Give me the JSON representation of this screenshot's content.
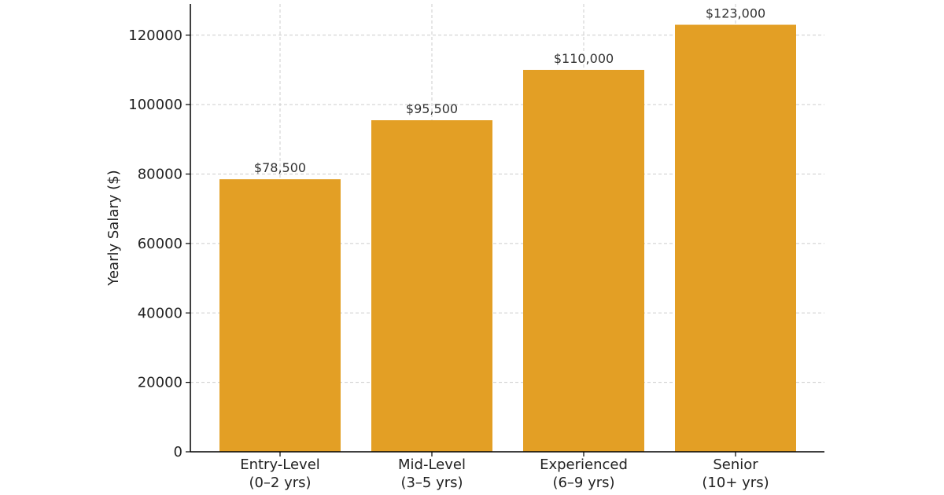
{
  "chart_data": {
    "type": "bar",
    "title": "",
    "xlabel": "",
    "ylabel": "Yearly Salary ($)",
    "categories": [
      [
        "Entry-Level",
        "(0–2 yrs)"
      ],
      [
        "Mid-Level",
        "(3–5 yrs)"
      ],
      [
        "Experienced",
        "(6–9 yrs)"
      ],
      [
        "Senior",
        "(10+ yrs)"
      ]
    ],
    "values": [
      78500,
      95500,
      110000,
      123000
    ],
    "data_labels": [
      "$78,500",
      "$95,500",
      "$110,000",
      "$123,000"
    ],
    "y_ticks": [
      0,
      20000,
      40000,
      60000,
      80000,
      100000,
      120000
    ],
    "ylim": [
      0,
      129000
    ],
    "grid": true,
    "legend": "none",
    "colors": {
      "bar": "#E39F25",
      "grid": "#CCCCCC",
      "axis": "#000000"
    }
  }
}
